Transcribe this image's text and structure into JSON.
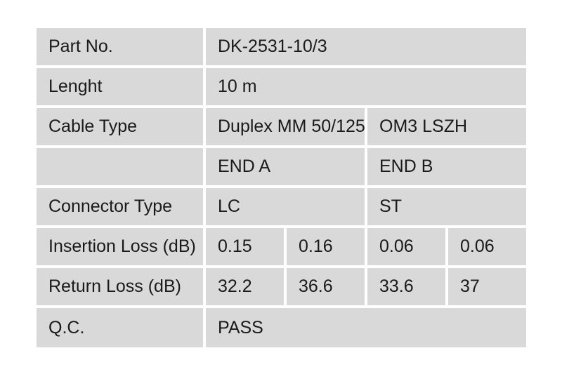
{
  "colors": {
    "page_bg": "#ffffff",
    "cell_bg": "#d9d9d9",
    "text": "#1a1a1a"
  },
  "table": {
    "rows": [
      {
        "label": "Part No.",
        "values": [
          "DK-2531-10/3"
        ]
      },
      {
        "label": "Lenght",
        "values": [
          "10 m"
        ]
      },
      {
        "label": "Cable Type",
        "values": [
          "Duplex MM 50/125",
          "OM3 LSZH"
        ]
      },
      {
        "label": "",
        "values": [
          "END A",
          "END B"
        ]
      },
      {
        "label": "Connector Type",
        "values": [
          "LC",
          "ST"
        ]
      },
      {
        "label": "Insertion Loss (dB)",
        "values": [
          "0.15",
          "0.16",
          "0.06",
          "0.06"
        ]
      },
      {
        "label": "Return Loss (dB)",
        "values": [
          "32.2",
          "36.6",
          "33.6",
          "37"
        ]
      },
      {
        "label": "Q.C.",
        "values": [
          "PASS"
        ]
      }
    ]
  }
}
